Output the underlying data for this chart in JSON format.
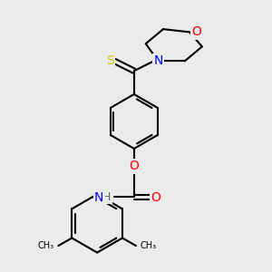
{
  "bg_color": "#ebebeb",
  "bond_color": "#000000",
  "colors": {
    "N": "#0000FF",
    "O": "#FF0000",
    "S": "#CCCC00",
    "C": "#000000",
    "H": "#666666"
  },
  "font_size": 9,
  "lw": 1.5
}
